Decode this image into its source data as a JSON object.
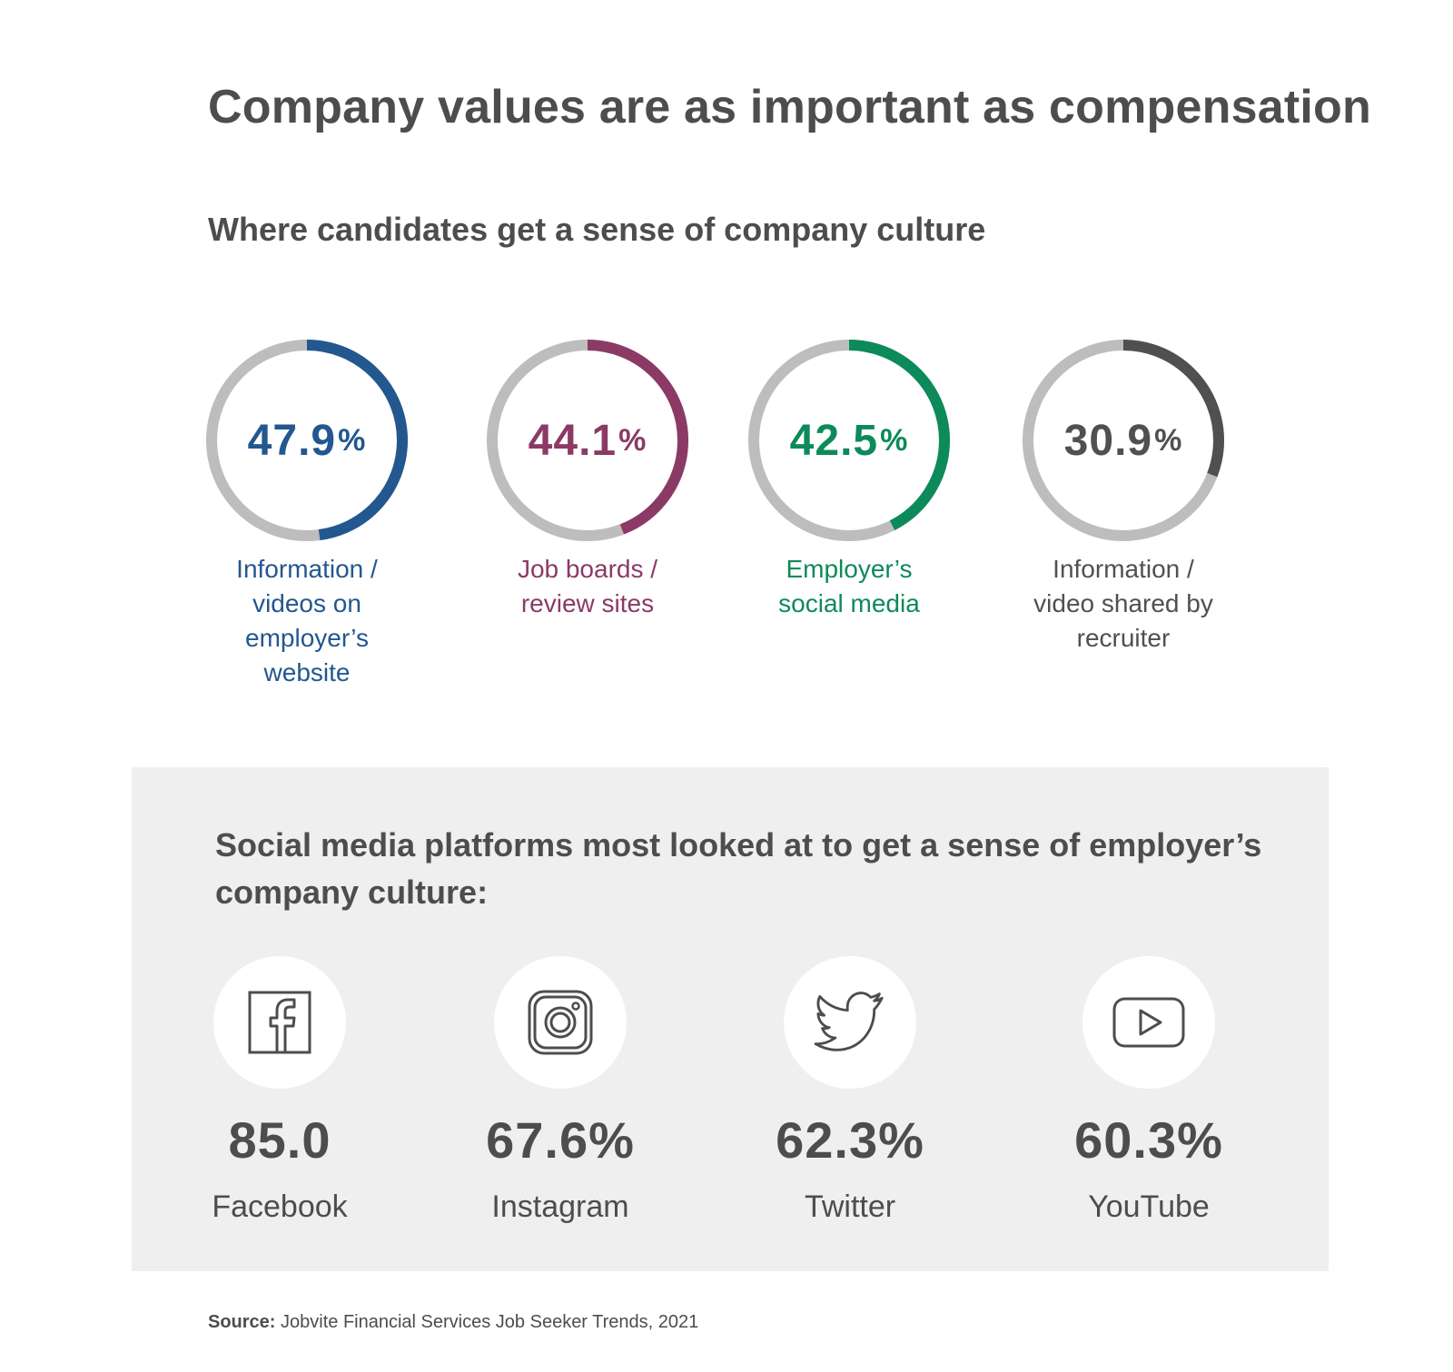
{
  "title": "Company values are as important as compensation",
  "subtitle": "Where candidates get a sense of company culture",
  "chart_data": [
    {
      "type": "pie",
      "title": "Where candidates get a sense of company culture",
      "series": [
        {
          "name": "Information / videos on employer’s website",
          "value": 47.9,
          "display": "47.9",
          "color": "#23578f"
        },
        {
          "name": "Job boards / review sites",
          "value": 44.1,
          "display": "44.1",
          "color": "#8b3a66"
        },
        {
          "name": "Employer’s social media",
          "value": 42.5,
          "display": "42.5",
          "color": "#0d8a5a"
        },
        {
          "name": "Information / video shared by recruiter",
          "value": 30.9,
          "display": "30.9",
          "color": "#505050"
        }
      ],
      "track_color": "#bdbdbd",
      "unit": "%"
    },
    {
      "type": "table",
      "title": "Social media platforms most looked at to get a sense of employer’s company culture:",
      "rows": [
        {
          "platform": "Facebook",
          "value": 85.0,
          "display": "85.0",
          "icon": "facebook-icon"
        },
        {
          "platform": "Instagram",
          "value": 67.6,
          "display": "67.6%",
          "icon": "instagram-icon"
        },
        {
          "platform": "Twitter",
          "value": 62.3,
          "display": "62.3%",
          "icon": "twitter-icon"
        },
        {
          "platform": "YouTube",
          "value": 60.3,
          "display": "60.3%",
          "icon": "youtube-icon"
        }
      ]
    }
  ],
  "rings": [
    {
      "label_lines": [
        "Information /",
        "videos on",
        "employer’s",
        "website"
      ]
    },
    {
      "label_lines": [
        "Job boards /",
        "review sites"
      ]
    },
    {
      "label_lines": [
        "Employer’s",
        "social media"
      ]
    },
    {
      "label_lines": [
        "Information /",
        "video shared by",
        "recruiter"
      ]
    }
  ],
  "panel_title": "Social media platforms most looked at to get a sense of employer’s company culture:",
  "source": {
    "label": "Source:",
    "text": "Jobvite Financial Services Job Seeker Trends, 2021"
  }
}
